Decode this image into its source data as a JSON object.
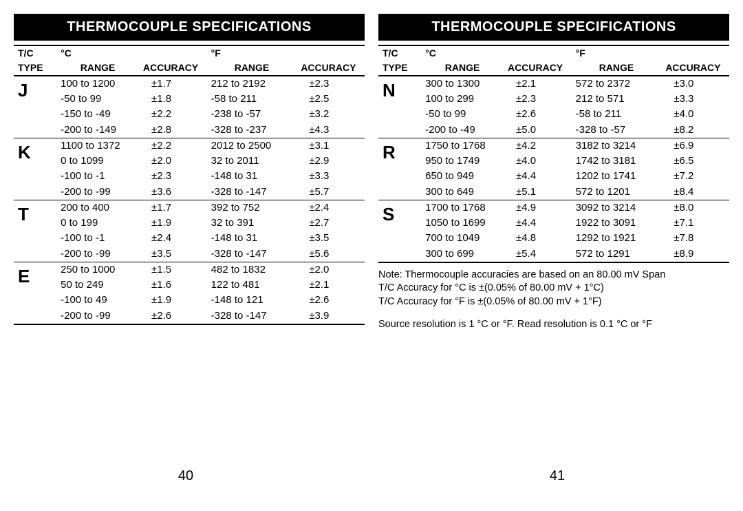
{
  "left": {
    "title": "THERMOCOUPLE SPECIFICATIONS",
    "page_number": "40",
    "headers": {
      "type_line1": "T/C",
      "type_line2": "TYPE",
      "c_unit": "°C",
      "f_unit": "°F",
      "range": "RANGE",
      "accuracy": "ACCURACY"
    },
    "types": [
      {
        "label": "J",
        "rows": [
          {
            "crange": "100 to 1200",
            "cacc": "±1.7",
            "frange": "212 to 2192",
            "facc": "±2.3"
          },
          {
            "crange": "-50 to 99",
            "cacc": "±1.8",
            "frange": "-58 to 211",
            "facc": "±2.5"
          },
          {
            "crange": "-150 to -49",
            "cacc": "±2.2",
            "frange": "-238 to -57",
            "facc": "±3.2"
          },
          {
            "crange": "-200 to -149",
            "cacc": "±2.8",
            "frange": "-328 to -237",
            "facc": "±4.3"
          }
        ]
      },
      {
        "label": "K",
        "rows": [
          {
            "crange": "1100 to 1372",
            "cacc": "±2.2",
            "frange": "2012 to 2500",
            "facc": "±3.1"
          },
          {
            "crange": "0 to 1099",
            "cacc": "±2.0",
            "frange": "32 to 2011",
            "facc": "±2.9"
          },
          {
            "crange": "-100 to -1",
            "cacc": "±2.3",
            "frange": "-148 to 31",
            "facc": "±3.3"
          },
          {
            "crange": "-200 to -99",
            "cacc": "±3.6",
            "frange": "-328 to -147",
            "facc": "±5.7"
          }
        ]
      },
      {
        "label": "T",
        "rows": [
          {
            "crange": "200 to 400",
            "cacc": "±1.7",
            "frange": "392 to 752",
            "facc": "±2.4"
          },
          {
            "crange": "0 to 199",
            "cacc": "±1.9",
            "frange": "32 to 391",
            "facc": "±2.7"
          },
          {
            "crange": "-100 to -1",
            "cacc": "±2.4",
            "frange": "-148 to 31",
            "facc": "±3.5"
          },
          {
            "crange": "-200 to -99",
            "cacc": "±3.5",
            "frange": "-328 to -147",
            "facc": "±5.6"
          }
        ]
      },
      {
        "label": "E",
        "rows": [
          {
            "crange": "250 to 1000",
            "cacc": "±1.5",
            "frange": "482 to 1832",
            "facc": "±2.0"
          },
          {
            "crange": "50 to 249",
            "cacc": "±1.6",
            "frange": "122 to 481",
            "facc": "±2.1"
          },
          {
            "crange": "-100 to 49",
            "cacc": "±1.9",
            "frange": "-148 to 121",
            "facc": "±2.6"
          },
          {
            "crange": "-200 to -99",
            "cacc": "±2.6",
            "frange": "-328 to -147",
            "facc": "±3.9"
          }
        ]
      }
    ]
  },
  "right": {
    "title": "THERMOCOUPLE SPECIFICATIONS",
    "page_number": "41",
    "headers": {
      "type_line1": "T/C",
      "type_line2": "TYPE",
      "c_unit": "°C",
      "f_unit": "°F",
      "range": "RANGE",
      "accuracy": "ACCURACY"
    },
    "types": [
      {
        "label": "N",
        "rows": [
          {
            "crange": "300 to 1300",
            "cacc": "±2.1",
            "frange": "572 to 2372",
            "facc": "±3.0"
          },
          {
            "crange": "100 to 299",
            "cacc": "±2.3",
            "frange": "212 to 571",
            "facc": "±3.3"
          },
          {
            "crange": "-50 to 99",
            "cacc": "±2.6",
            "frange": "-58 to 211",
            "facc": "±4.0"
          },
          {
            "crange": "-200 to -49",
            "cacc": "±5.0",
            "frange": "-328 to -57",
            "facc": "±8.2"
          }
        ]
      },
      {
        "label": "R",
        "rows": [
          {
            "crange": "1750 to 1768",
            "cacc": "±4.2",
            "frange": "3182 to 3214",
            "facc": "±6.9"
          },
          {
            "crange": "950 to 1749",
            "cacc": "±4.0",
            "frange": "1742 to 3181",
            "facc": "±6.5"
          },
          {
            "crange": "650 to 949",
            "cacc": "±4.4",
            "frange": "1202 to 1741",
            "facc": "±7.2"
          },
          {
            "crange": "300 to 649",
            "cacc": "±5.1",
            "frange": "572 to 1201",
            "facc": "±8.4"
          }
        ]
      },
      {
        "label": "S",
        "rows": [
          {
            "crange": "1700 to 1768",
            "cacc": "±4.9",
            "frange": "3092 to 3214",
            "facc": "±8.0"
          },
          {
            "crange": "1050 to 1699",
            "cacc": "±4.4",
            "frange": "1922 to 3091",
            "facc": "±7.1"
          },
          {
            "crange": "700 to 1049",
            "cacc": "±4.8",
            "frange": "1292 to 1921",
            "facc": "±7.8"
          },
          {
            "crange": "300 to 699",
            "cacc": "±5.4",
            "frange": "572 to 1291",
            "facc": "±8.9"
          }
        ]
      }
    ],
    "notes": {
      "line1": "Note: Thermocouple accuracies are based on an 80.00 mV Span",
      "line2": "T/C Accuracy  for °C is ±(0.05% of 80.00 mV + 1°C)",
      "line3": "T/C Accuracy  for °F is ±(0.05% of 80.00 mV + 1°F)",
      "line4": "Source resolution is 1 °C or °F. Read resolution is 0.1 °C or °F"
    }
  }
}
